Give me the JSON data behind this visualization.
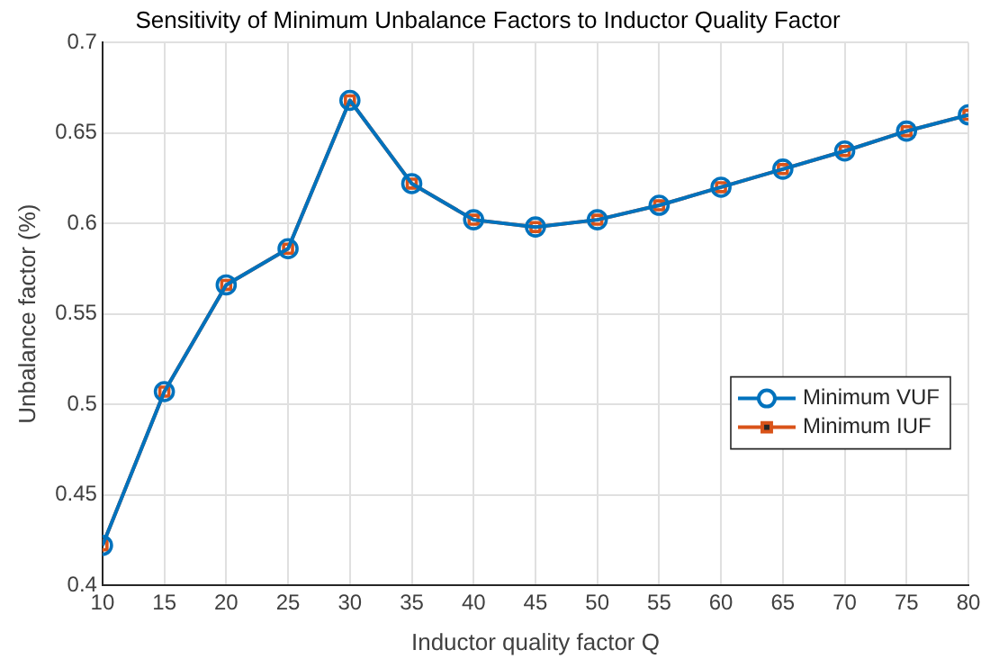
{
  "chart_data": {
    "type": "line",
    "title": "Sensitivity of Minimum Unbalance Factors to Inductor Quality Factor",
    "xlabel": "Inductor quality factor Q",
    "ylabel": "Unbalance factor (%)",
    "x": [
      10,
      15,
      20,
      25,
      30,
      35,
      40,
      45,
      50,
      55,
      60,
      65,
      70,
      75,
      80
    ],
    "series": [
      {
        "name": "Minimum VUF",
        "color": "#0072bd",
        "marker": "circle",
        "values": [
          0.422,
          0.507,
          0.566,
          0.586,
          0.668,
          0.622,
          0.602,
          0.598,
          0.602,
          0.61,
          0.62,
          0.63,
          0.64,
          0.651,
          0.66
        ]
      },
      {
        "name": "Minimum IUF",
        "color": "#d95319",
        "marker": "square",
        "values": [
          0.422,
          0.507,
          0.566,
          0.586,
          0.668,
          0.622,
          0.602,
          0.598,
          0.602,
          0.61,
          0.62,
          0.63,
          0.64,
          0.651,
          0.66
        ]
      }
    ],
    "xlim": [
      10,
      80
    ],
    "xticks": [
      10,
      15,
      20,
      25,
      30,
      35,
      40,
      45,
      50,
      55,
      60,
      65,
      70,
      75,
      80
    ],
    "ylim": [
      0.4,
      0.7
    ],
    "yticks": [
      0.4,
      0.45,
      0.5,
      0.55,
      0.6,
      0.65,
      0.7
    ],
    "grid": true,
    "legend": "right",
    "line_style": "solid"
  }
}
